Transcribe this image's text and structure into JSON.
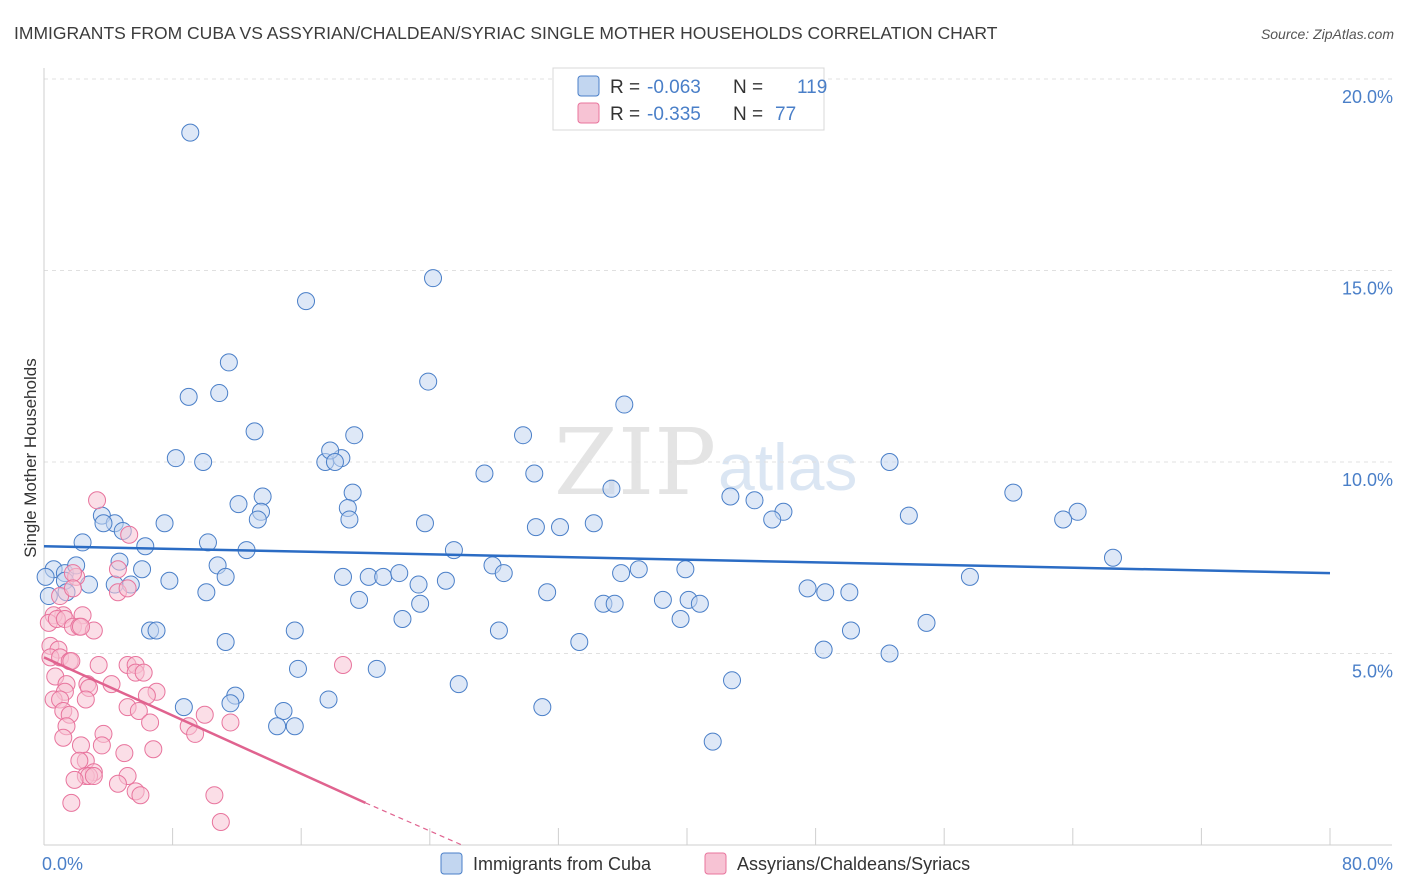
{
  "title": "IMMIGRANTS FROM CUBA VS ASSYRIAN/CHALDEAN/SYRIAC SINGLE MOTHER HOUSEHOLDS CORRELATION CHART",
  "source": "Source: ZipAtlas.com",
  "watermark": {
    "zip": "ZIP",
    "atlas": "atlas"
  },
  "colors": {
    "blue": "#4a7fc8",
    "blue_fill": "#c2d6f0",
    "blue_line": "#2b6cc4",
    "pink": "#e8749d",
    "pink_fill": "#f7c3d4",
    "pink_line": "#e0638f"
  },
  "legend": {
    "rows": [
      {
        "r_label": "R =",
        "r_value": "-0.063",
        "n_label": "N =",
        "n_value": "119"
      },
      {
        "r_label": "R =",
        "r_value": "-0.335",
        "n_label": "N =",
        "n_value": "77"
      }
    ]
  },
  "bottom_legend": {
    "series1": "Immigrants from Cuba",
    "series2": "Assyrians/Chaldeans/Syriacs"
  },
  "chart_data": {
    "type": "scatter",
    "title": "IMMIGRANTS FROM CUBA VS ASSYRIAN/CHALDEAN/SYRIAC SINGLE MOTHER HOUSEHOLDS CORRELATION CHART",
    "xlabel": "",
    "ylabel": "Single Mother Households",
    "xlim": [
      0,
      80
    ],
    "ylim": [
      0,
      20
    ],
    "x_tick_labels": [
      "0.0%",
      "80.0%"
    ],
    "y_ticks": [
      {
        "value": 5,
        "label": "5.0%"
      },
      {
        "value": 10,
        "label": "10.0%"
      },
      {
        "value": 15,
        "label": "15.0%"
      },
      {
        "value": 20,
        "label": "20.0%"
      }
    ],
    "x_minor_ticks": [
      0,
      8,
      16,
      24,
      32,
      40,
      48,
      56,
      64,
      72,
      80
    ],
    "series": [
      {
        "name": "Immigrants from Cuba",
        "r": -0.063,
        "n": 119,
        "trend": {
          "x": [
            0,
            80
          ],
          "y": [
            7.8,
            7.1
          ]
        },
        "points": [
          [
            9.1,
            18.6
          ],
          [
            24.2,
            14.8
          ],
          [
            16.3,
            14.2
          ],
          [
            11.5,
            12.6
          ],
          [
            23.9,
            12.1
          ],
          [
            9.0,
            11.7
          ],
          [
            10.9,
            11.8
          ],
          [
            36.1,
            11.5
          ],
          [
            13.1,
            10.8
          ],
          [
            19.3,
            10.7
          ],
          [
            29.8,
            10.7
          ],
          [
            8.2,
            10.1
          ],
          [
            9.9,
            10.0
          ],
          [
            17.5,
            10.0
          ],
          [
            18.5,
            10.1
          ],
          [
            17.8,
            10.3
          ],
          [
            18.1,
            10.0
          ],
          [
            27.4,
            9.7
          ],
          [
            30.5,
            9.7
          ],
          [
            52.6,
            10.0
          ],
          [
            35.3,
            9.3
          ],
          [
            19.2,
            9.2
          ],
          [
            13.6,
            9.1
          ],
          [
            42.7,
            9.1
          ],
          [
            44.2,
            9.0
          ],
          [
            60.3,
            9.2
          ],
          [
            12.1,
            8.9
          ],
          [
            13.5,
            8.7
          ],
          [
            18.9,
            8.8
          ],
          [
            46.0,
            8.7
          ],
          [
            53.8,
            8.6
          ],
          [
            64.3,
            8.7
          ],
          [
            3.6,
            8.6
          ],
          [
            4.4,
            8.4
          ],
          [
            3.7,
            8.4
          ],
          [
            13.3,
            8.5
          ],
          [
            19.0,
            8.5
          ],
          [
            23.7,
            8.4
          ],
          [
            30.6,
            8.3
          ],
          [
            32.1,
            8.3
          ],
          [
            34.2,
            8.4
          ],
          [
            45.3,
            8.5
          ],
          [
            63.4,
            8.5
          ],
          [
            7.5,
            8.4
          ],
          [
            4.9,
            8.2
          ],
          [
            2.4,
            7.9
          ],
          [
            10.2,
            7.9
          ],
          [
            6.3,
            7.8
          ],
          [
            12.6,
            7.7
          ],
          [
            25.5,
            7.7
          ],
          [
            4.7,
            7.4
          ],
          [
            0.6,
            7.2
          ],
          [
            1.3,
            7.1
          ],
          [
            2.0,
            7.3
          ],
          [
            6.1,
            7.2
          ],
          [
            10.8,
            7.3
          ],
          [
            11.3,
            7.0
          ],
          [
            18.6,
            7.0
          ],
          [
            20.2,
            7.0
          ],
          [
            21.1,
            7.0
          ],
          [
            22.1,
            7.1
          ],
          [
            27.9,
            7.3
          ],
          [
            28.6,
            7.1
          ],
          [
            35.9,
            7.1
          ],
          [
            37.0,
            7.2
          ],
          [
            39.9,
            7.2
          ],
          [
            66.5,
            7.5
          ],
          [
            57.6,
            7.0
          ],
          [
            0.1,
            7.0
          ],
          [
            1.3,
            6.9
          ],
          [
            2.8,
            6.8
          ],
          [
            4.4,
            6.8
          ],
          [
            5.4,
            6.8
          ],
          [
            7.8,
            6.9
          ],
          [
            23.3,
            6.8
          ],
          [
            25.0,
            6.9
          ],
          [
            31.3,
            6.6
          ],
          [
            10.1,
            6.6
          ],
          [
            1.4,
            6.6
          ],
          [
            0.3,
            6.5
          ],
          [
            19.6,
            6.4
          ],
          [
            23.4,
            6.3
          ],
          [
            22.3,
            5.9
          ],
          [
            34.8,
            6.3
          ],
          [
            35.5,
            6.3
          ],
          [
            38.5,
            6.4
          ],
          [
            40.1,
            6.4
          ],
          [
            40.8,
            6.3
          ],
          [
            47.5,
            6.7
          ],
          [
            48.6,
            6.6
          ],
          [
            50.1,
            6.6
          ],
          [
            39.6,
            5.9
          ],
          [
            54.9,
            5.8
          ],
          [
            50.2,
            5.6
          ],
          [
            6.6,
            5.6
          ],
          [
            7.0,
            5.6
          ],
          [
            15.6,
            5.6
          ],
          [
            28.3,
            5.6
          ],
          [
            33.3,
            5.3
          ],
          [
            11.3,
            5.3
          ],
          [
            20.7,
            4.6
          ],
          [
            15.8,
            4.6
          ],
          [
            42.8,
            4.3
          ],
          [
            48.5,
            5.1
          ],
          [
            52.6,
            5.0
          ],
          [
            25.8,
            4.2
          ],
          [
            11.9,
            3.9
          ],
          [
            17.7,
            3.8
          ],
          [
            8.7,
            3.6
          ],
          [
            11.6,
            3.7
          ],
          [
            14.9,
            3.5
          ],
          [
            31.0,
            3.6
          ],
          [
            14.5,
            3.1
          ],
          [
            15.6,
            3.1
          ],
          [
            41.6,
            2.7
          ]
        ]
      },
      {
        "name": "Assyrians/Chaldeans/Syriacs",
        "r": -0.335,
        "n": 77,
        "trend": {
          "x": [
            0,
            20
          ],
          "y": [
            4.9,
            1.1
          ]
        },
        "trend_dashed": {
          "x": [
            20,
            26
          ],
          "y": [
            1.1,
            0.0
          ]
        },
        "points": [
          [
            3.3,
            9.0
          ],
          [
            5.3,
            8.1
          ],
          [
            2.0,
            7.0
          ],
          [
            4.6,
            7.2
          ],
          [
            1.8,
            7.1
          ],
          [
            1.0,
            6.5
          ],
          [
            1.8,
            6.7
          ],
          [
            4.6,
            6.6
          ],
          [
            1.2,
            6.0
          ],
          [
            0.6,
            6.0
          ],
          [
            2.4,
            6.0
          ],
          [
            0.3,
            5.8
          ],
          [
            5.2,
            6.7
          ],
          [
            0.8,
            5.9
          ],
          [
            1.3,
            5.9
          ],
          [
            1.8,
            5.7
          ],
          [
            2.2,
            5.7
          ],
          [
            3.1,
            5.6
          ],
          [
            2.3,
            5.7
          ],
          [
            0.4,
            5.2
          ],
          [
            0.9,
            5.1
          ],
          [
            0.4,
            4.9
          ],
          [
            1.0,
            4.9
          ],
          [
            1.6,
            4.8
          ],
          [
            1.7,
            4.8
          ],
          [
            3.4,
            4.7
          ],
          [
            5.2,
            4.7
          ],
          [
            5.7,
            4.7
          ],
          [
            18.6,
            4.7
          ],
          [
            0.7,
            4.4
          ],
          [
            2.7,
            4.2
          ],
          [
            1.4,
            4.2
          ],
          [
            2.8,
            4.1
          ],
          [
            1.3,
            4.0
          ],
          [
            7.0,
            4.0
          ],
          [
            0.6,
            3.8
          ],
          [
            5.7,
            4.5
          ],
          [
            6.2,
            4.5
          ],
          [
            4.2,
            4.2
          ],
          [
            6.4,
            3.9
          ],
          [
            2.6,
            3.8
          ],
          [
            1.0,
            3.8
          ],
          [
            5.2,
            3.6
          ],
          [
            5.9,
            3.5
          ],
          [
            10.0,
            3.4
          ],
          [
            1.2,
            3.5
          ],
          [
            1.6,
            3.4
          ],
          [
            11.6,
            3.2
          ],
          [
            6.6,
            3.2
          ],
          [
            1.4,
            3.1
          ],
          [
            9.0,
            3.1
          ],
          [
            1.2,
            2.8
          ],
          [
            3.7,
            2.9
          ],
          [
            9.4,
            2.9
          ],
          [
            3.6,
            2.6
          ],
          [
            6.8,
            2.5
          ],
          [
            5.0,
            2.4
          ],
          [
            2.3,
            2.6
          ],
          [
            2.6,
            2.2
          ],
          [
            2.2,
            2.2
          ],
          [
            3.1,
            1.9
          ],
          [
            5.2,
            1.8
          ],
          [
            2.6,
            1.8
          ],
          [
            2.8,
            1.8
          ],
          [
            3.1,
            1.8
          ],
          [
            1.9,
            1.7
          ],
          [
            4.6,
            1.6
          ],
          [
            5.7,
            1.4
          ],
          [
            6.0,
            1.3
          ],
          [
            10.6,
            1.3
          ],
          [
            1.7,
            1.1
          ],
          [
            11.0,
            0.6
          ]
        ]
      }
    ]
  }
}
